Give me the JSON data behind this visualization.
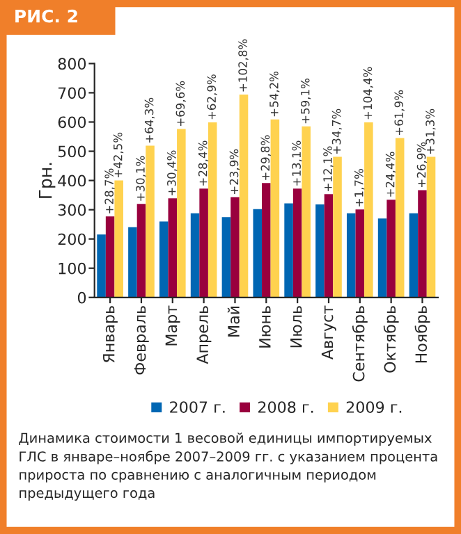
{
  "chart_data": {
    "type": "bar",
    "title": "РИС. 2",
    "ylabel": "Грн.",
    "categories": [
      "Январь",
      "Февраль",
      "Март",
      "Апрель",
      "Май",
      "Июнь",
      "Июль",
      "Август",
      "Сентябрь",
      "Октябрь",
      "Ноябрь"
    ],
    "series": [
      {
        "name": "2007 г.",
        "color": "#0066b3",
        "values": [
          215,
          240,
          260,
          288,
          275,
          302,
          322,
          318,
          288,
          270,
          288
        ]
      },
      {
        "name": "2008 г.",
        "color": "#99003d",
        "values": [
          277,
          320,
          339,
          372,
          343,
          391,
          372,
          353,
          301,
          334,
          367
        ]
      },
      {
        "name": "2009 г.",
        "color": "#ffd24f",
        "values": [
          400,
          519,
          576,
          599,
          694,
          609,
          585,
          481,
          599,
          545,
          481
        ]
      }
    ],
    "ylim": [
      0,
      800
    ],
    "yticks": [
      0,
      100,
      200,
      300,
      400,
      500,
      600,
      700,
      800
    ],
    "grid": false,
    "legend": "bottom",
    "annotations": [
      {
        "text": "+28,7%",
        "x": "Январь",
        "y": 277
      },
      {
        "text": "+42,5%",
        "x": "Январь",
        "y": 400
      },
      {
        "text": "+30,1%",
        "x": "Февраль",
        "y": 320
      },
      {
        "text": "+64,3%",
        "x": "Февраль",
        "y": 519
      },
      {
        "text": "+30,4%",
        "x": "Март",
        "y": 339
      },
      {
        "text": "+69,6%",
        "x": "Март",
        "y": 576
      },
      {
        "text": "+28,4%",
        "x": "Апрель",
        "y": 372
      },
      {
        "text": "+62,9%",
        "x": "Апрель",
        "y": 599
      },
      {
        "text": "+23,9%",
        "x": "Май",
        "y": 343
      },
      {
        "text": "+102,8%",
        "x": "Май",
        "y": 694
      },
      {
        "text": "+29,8%",
        "x": "Июнь",
        "y": 391
      },
      {
        "text": "+54,2%",
        "x": "Июнь",
        "y": 609
      },
      {
        "text": "+13,1%",
        "x": "Июль",
        "y": 372
      },
      {
        "text": "+59,1%",
        "x": "Июль",
        "y": 585
      },
      {
        "text": "+12,1%",
        "x": "Август",
        "y": 353
      },
      {
        "text": "+34,7%",
        "x": "Август",
        "y": 481
      },
      {
        "text": "+1,7%",
        "x": "Сентябрь",
        "y": 301
      },
      {
        "text": "+104,4%",
        "x": "Сентябрь",
        "y": 599
      },
      {
        "text": "+24,4%",
        "x": "Октябрь",
        "y": 334
      },
      {
        "text": "+61,9%",
        "x": "Октябрь",
        "y": 545
      },
      {
        "text": "+26,9%",
        "x": "Ноябрь",
        "y": 367
      },
      {
        "text": "+31,3%",
        "x": "Ноябрь",
        "y": 481
      },
      "Динамика стоимости 1 весовой единицы импортируемых ГЛС в январе–ноябре 2007–2009 гг. с указанием процента прироста по сравнению с аналогичным периодом предыдущего года"
    ]
  }
}
